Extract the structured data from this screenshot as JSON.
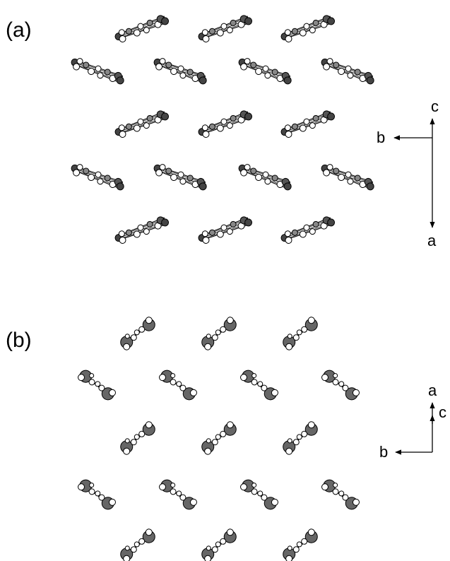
{
  "panels": [
    {
      "label": "(a)",
      "axes": {
        "up": "c",
        "left": "b",
        "down": "a"
      }
    },
    {
      "label": "(b)",
      "axes": {
        "up": "a",
        "side": "c",
        "left": "b"
      }
    }
  ]
}
